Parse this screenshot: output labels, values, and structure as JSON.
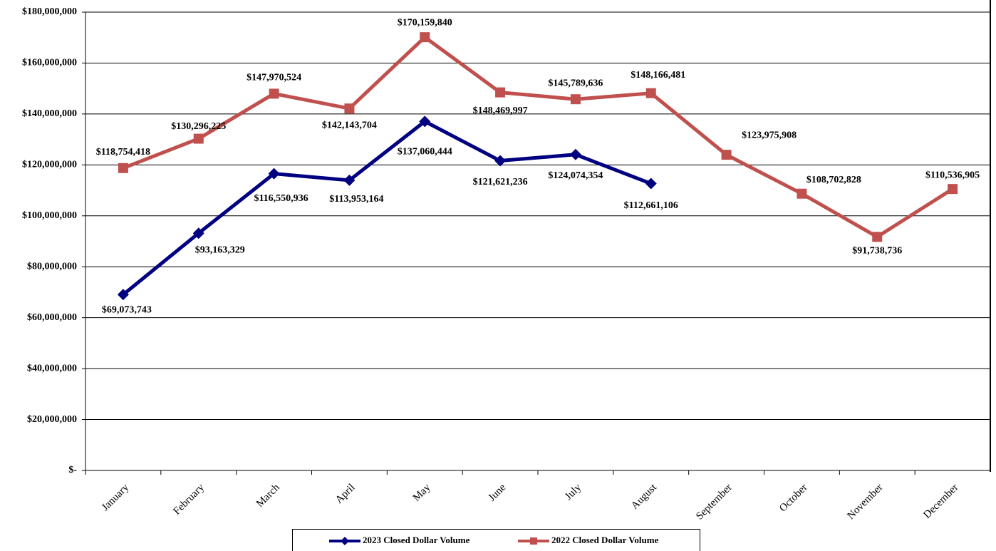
{
  "chart_data": {
    "type": "line",
    "categories": [
      "January",
      "February",
      "March",
      "April",
      "May",
      "June",
      "July",
      "August",
      "September",
      "October",
      "November",
      "December"
    ],
    "series": [
      {
        "name": "2023 Closed Dollar Volume",
        "color": "#000080",
        "marker": "diamond",
        "values": [
          69073743,
          93163329,
          116550936,
          113953164,
          137060444,
          121621236,
          124074354,
          112661106,
          null,
          null,
          null,
          null
        ],
        "value_labels": [
          "$69,073,743",
          "$93,163,329",
          "$116,550,936",
          "$113,953,164",
          "$137,060,444",
          "$121,621,236",
          "$124,074,354",
          "$112,661,106",
          null,
          null,
          null,
          null
        ]
      },
      {
        "name": "2022 Closed Dollar Volume",
        "color": "#c0504d",
        "marker": "square",
        "values": [
          118754418,
          130296225,
          147970524,
          142143704,
          170159840,
          148469997,
          145789636,
          148166481,
          123975908,
          108702828,
          91738736,
          110536905
        ],
        "value_labels": [
          "$118,754,418",
          "$130,296,225",
          "$147,970,524",
          "$142,143,704",
          "$170,159,840",
          "$148,469,997",
          "$145,789,636",
          "$148,166,481",
          "$123,975,908",
          "$108,702,828",
          "$91,738,736",
          "$110,536,905"
        ]
      }
    ],
    "ylim": [
      0,
      180000000
    ],
    "yticks": [
      {
        "value": 0,
        "label": "$-"
      },
      {
        "value": 20000000,
        "label": "$20,000,000"
      },
      {
        "value": 40000000,
        "label": "$40,000,000"
      },
      {
        "value": 60000000,
        "label": "$60,000,000"
      },
      {
        "value": 80000000,
        "label": "$80,000,000"
      },
      {
        "value": 100000000,
        "label": "$100,000,000"
      },
      {
        "value": 120000000,
        "label": "$120,000,000"
      },
      {
        "value": 140000000,
        "label": "$140,000,000"
      },
      {
        "value": 160000000,
        "label": "$160,000,000"
      },
      {
        "value": 180000000,
        "label": "$180,000,000"
      }
    ],
    "grid": true,
    "legend": "bottom"
  }
}
